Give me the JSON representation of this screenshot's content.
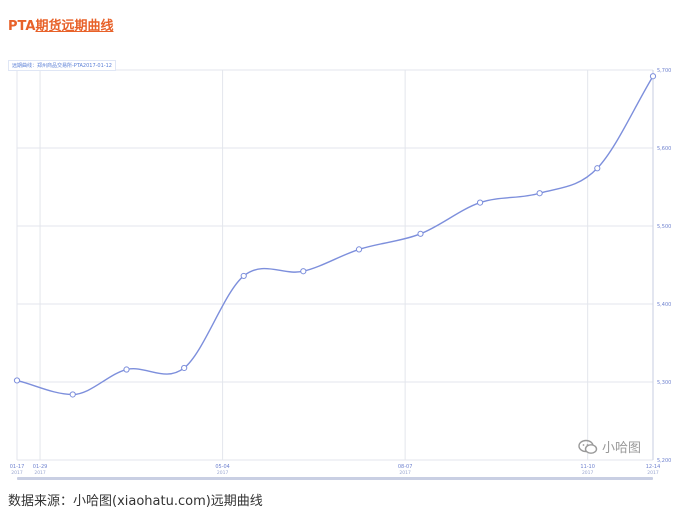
{
  "header": {
    "title_prefix": "PTA",
    "title_link": "期货远期曲线"
  },
  "legend": {
    "label": "远期曲线：郑州商品交易所-PTA2017-01-12"
  },
  "watermark": {
    "text": "小哈图",
    "icon": "wechat-icon"
  },
  "footer": {
    "text": "数据来源：小哈图(xiaohatu.com)远期曲线"
  },
  "colors": {
    "title": "#e8622a",
    "line": "#7d8fdc",
    "grid": "#e3e6ec",
    "axis_text": "#6f82cf",
    "scrollbar": "#c9cfe3"
  },
  "chart_data": {
    "type": "line",
    "title": "",
    "xlabel": "",
    "ylabel": "",
    "ylim": [
      5200,
      5700
    ],
    "y_ticks": [
      5200,
      5300,
      5400,
      5500,
      5600,
      5700
    ],
    "y_tick_labels": [
      "5,200",
      "5,300",
      "5,400",
      "5,500",
      "5,600",
      "5,700"
    ],
    "x_ticks": [
      {
        "date": "2017-01-17",
        "day": "01-17",
        "year": "2017"
      },
      {
        "date": "2017-01-29",
        "day": "01-29",
        "year": "2017"
      },
      {
        "date": "2017-05-04",
        "day": "05-04",
        "year": "2017"
      },
      {
        "date": "2017-08-07",
        "day": "08-07",
        "year": "2017"
      },
      {
        "date": "2017-11-10",
        "day": "11-10",
        "year": "2017"
      },
      {
        "date": "2017-12-14",
        "day": "12-14",
        "year": "2017"
      }
    ],
    "grid": true,
    "series": [
      {
        "x": [
          "2017-01-17",
          "2017-02-15",
          "2017-03-15",
          "2017-04-14",
          "2017-05-15",
          "2017-06-15",
          "2017-07-14",
          "2017-08-15",
          "2017-09-15",
          "2017-10-16",
          "2017-11-15",
          "2017-12-14"
        ],
        "values": [
          5302,
          5284,
          5316,
          5318,
          5436,
          5442,
          5470,
          5490,
          5530,
          5542,
          5574,
          5692
        ]
      }
    ]
  }
}
